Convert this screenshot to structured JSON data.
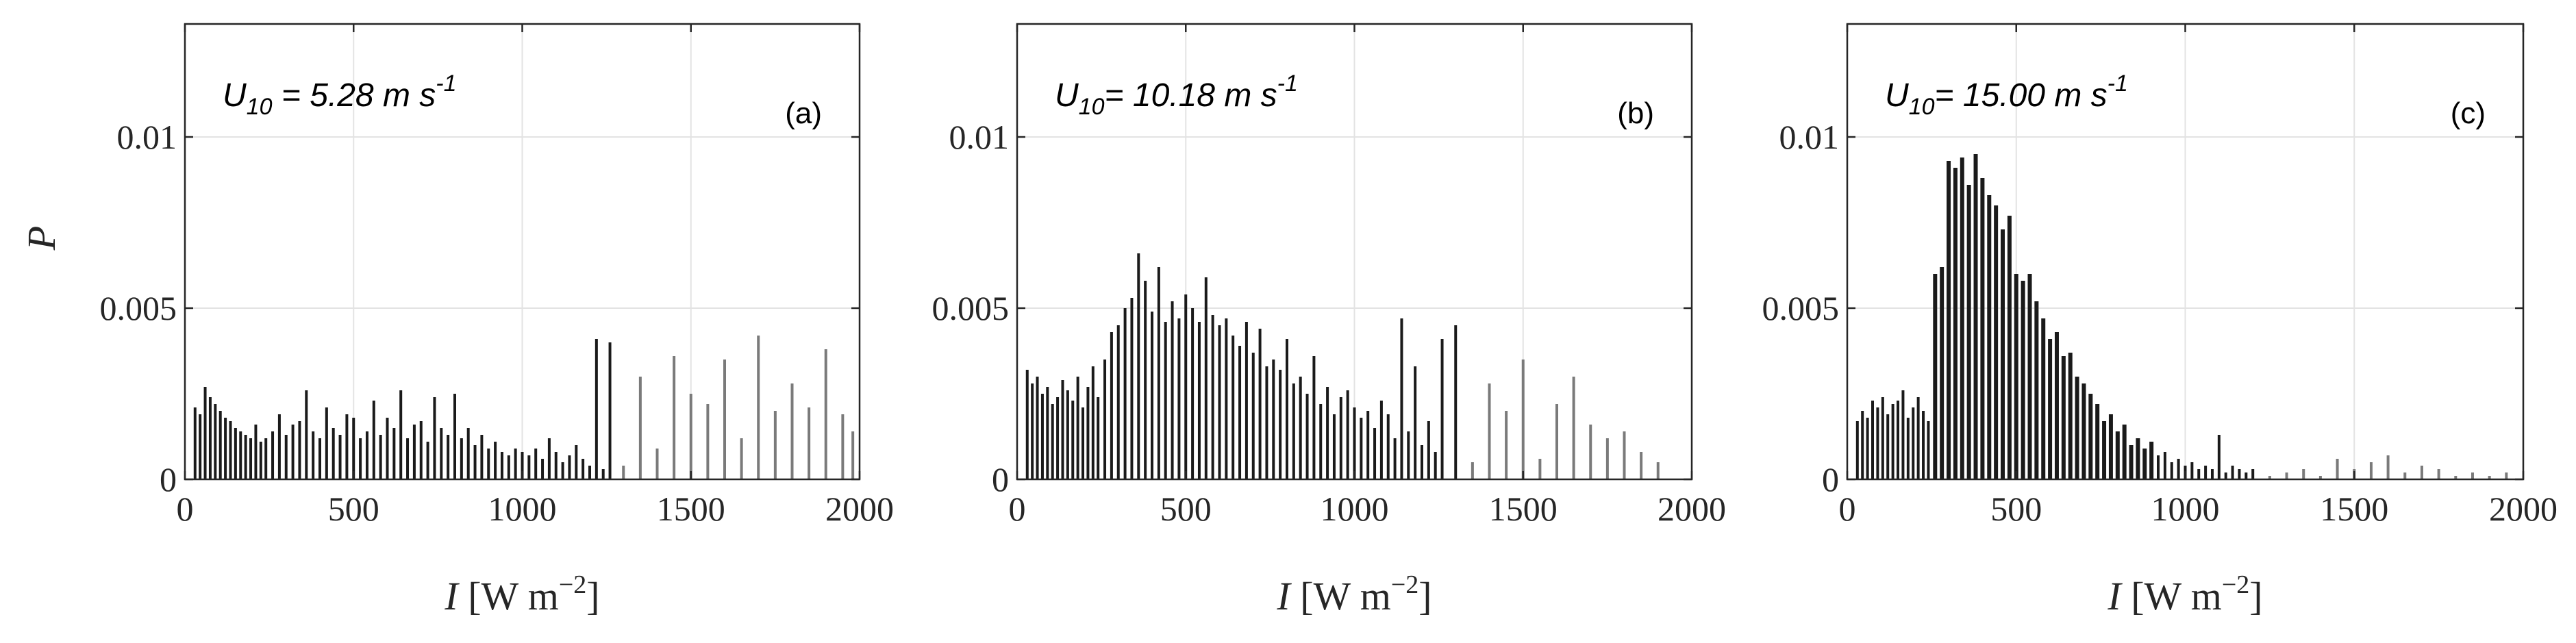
{
  "chart_data": [
    {
      "type": "bar",
      "panel_tag": "(a)",
      "annotation": {
        "base": "U",
        "sub": "10",
        "text": " = 5.28 m s",
        "sup": "-1"
      },
      "ylabel": "P",
      "xlabel": {
        "var": "I",
        "units": " [W m",
        "sup": "−2",
        "close": "]"
      },
      "xlim": [
        0,
        2000
      ],
      "ylim": [
        0,
        0.0133
      ],
      "xticks": [
        0,
        500,
        1000,
        1500,
        2000
      ],
      "xtick_labels": [
        "0",
        "500",
        "1000",
        "1500",
        "2000"
      ],
      "yticks": [
        0,
        0.005,
        0.01
      ],
      "ytick_labels": [
        "0",
        "0.005",
        "0.01"
      ],
      "grid": true,
      "x": [
        30,
        45,
        60,
        75,
        90,
        105,
        120,
        135,
        150,
        165,
        180,
        195,
        210,
        225,
        240,
        260,
        280,
        300,
        320,
        340,
        360,
        380,
        400,
        420,
        440,
        460,
        480,
        500,
        520,
        540,
        560,
        580,
        600,
        620,
        640,
        660,
        680,
        700,
        720,
        740,
        760,
        780,
        800,
        820,
        840,
        860,
        880,
        900,
        920,
        940,
        960,
        980,
        1000,
        1020,
        1040,
        1060,
        1080,
        1100,
        1120,
        1140,
        1160,
        1180,
        1200,
        1220,
        1240,
        1260,
        1300,
        1350,
        1400,
        1450,
        1500,
        1550,
        1600,
        1650,
        1700,
        1750,
        1800,
        1850,
        1900,
        1950,
        1980
      ],
      "values": [
        0.0021,
        0.0019,
        0.0027,
        0.0024,
        0.0022,
        0.002,
        0.0018,
        0.0017,
        0.0015,
        0.0014,
        0.0013,
        0.0012,
        0.0016,
        0.0011,
        0.0012,
        0.0014,
        0.0019,
        0.0013,
        0.0016,
        0.0017,
        0.0026,
        0.0014,
        0.0012,
        0.0021,
        0.0015,
        0.0013,
        0.0019,
        0.0018,
        0.0012,
        0.0014,
        0.0023,
        0.0013,
        0.0018,
        0.0015,
        0.0026,
        0.0012,
        0.0016,
        0.0017,
        0.0011,
        0.0024,
        0.0015,
        0.0013,
        0.0025,
        0.0012,
        0.0015,
        0.001,
        0.0013,
        0.0009,
        0.0011,
        0.0008,
        0.0007,
        0.0009,
        0.0008,
        0.0007,
        0.0009,
        0.0006,
        0.0012,
        0.0008,
        0.0005,
        0.0007,
        0.001,
        0.0006,
        0.0004,
        0.0041,
        0.0003,
        0.004,
        0.0004,
        0.003,
        0.0009,
        0.0036,
        0.0025,
        0.0022,
        0.0035,
        0.0012,
        0.0042,
        0.002,
        0.0028,
        0.0021,
        0.0038,
        0.0019,
        0.0014
      ]
    },
    {
      "type": "bar",
      "panel_tag": "(b)",
      "annotation": {
        "base": "U",
        "sub": "10",
        "text": "= 10.18 m s",
        "sup": "-1"
      },
      "xlabel": {
        "var": "I",
        "units": " [W m",
        "sup": "−2",
        "close": "]"
      },
      "xlim": [
        0,
        2000
      ],
      "ylim": [
        0,
        0.0133
      ],
      "xticks": [
        0,
        500,
        1000,
        1500,
        2000
      ],
      "xtick_labels": [
        "0",
        "500",
        "1000",
        "1500",
        "2000"
      ],
      "yticks": [
        0,
        0.005,
        0.01
      ],
      "ytick_labels": [
        "0",
        "0.005",
        "0.01"
      ],
      "grid": true,
      "x": [
        30,
        45,
        60,
        75,
        90,
        105,
        120,
        135,
        150,
        165,
        180,
        195,
        210,
        225,
        240,
        260,
        280,
        300,
        320,
        340,
        360,
        380,
        400,
        420,
        440,
        460,
        480,
        500,
        520,
        540,
        560,
        580,
        600,
        620,
        640,
        660,
        680,
        700,
        720,
        740,
        760,
        780,
        800,
        820,
        840,
        860,
        880,
        900,
        920,
        940,
        960,
        980,
        1000,
        1020,
        1040,
        1060,
        1080,
        1100,
        1120,
        1140,
        1160,
        1180,
        1200,
        1220,
        1240,
        1260,
        1300,
        1350,
        1400,
        1450,
        1500,
        1550,
        1600,
        1650,
        1700,
        1750,
        1800,
        1850,
        1900
      ],
      "values": [
        0.0032,
        0.0028,
        0.003,
        0.0025,
        0.0027,
        0.0022,
        0.0024,
        0.0029,
        0.0026,
        0.0023,
        0.003,
        0.0021,
        0.0027,
        0.0033,
        0.0024,
        0.0035,
        0.0043,
        0.0045,
        0.005,
        0.0053,
        0.0066,
        0.0058,
        0.0049,
        0.0062,
        0.0046,
        0.0052,
        0.0047,
        0.0054,
        0.005,
        0.0046,
        0.0059,
        0.0048,
        0.0045,
        0.0047,
        0.0042,
        0.0039,
        0.0046,
        0.0037,
        0.0044,
        0.0033,
        0.0035,
        0.0032,
        0.0041,
        0.0028,
        0.003,
        0.0025,
        0.0036,
        0.0022,
        0.0027,
        0.0019,
        0.0024,
        0.0026,
        0.0021,
        0.0018,
        0.002,
        0.0015,
        0.0023,
        0.0019,
        0.0012,
        0.0047,
        0.0014,
        0.0033,
        0.001,
        0.0017,
        0.0008,
        0.0041,
        0.0045,
        0.0005,
        0.0028,
        0.002,
        0.0035,
        0.0006,
        0.0022,
        0.003,
        0.0016,
        0.0012,
        0.0014,
        0.0008,
        0.0005
      ]
    },
    {
      "type": "bar",
      "panel_tag": "(c)",
      "annotation": {
        "base": "U",
        "sub": "10",
        "text": "= 15.00 m s",
        "sup": "-1"
      },
      "xlabel": {
        "var": "I",
        "units": " [W m",
        "sup": "−2",
        "close": "]"
      },
      "xlim": [
        0,
        2000
      ],
      "ylim": [
        0,
        0.0133
      ],
      "xticks": [
        0,
        500,
        1000,
        1500,
        2000
      ],
      "xtick_labels": [
        "0",
        "500",
        "1000",
        "1500",
        "2000"
      ],
      "yticks": [
        0,
        0.005,
        0.01
      ],
      "ytick_labels": [
        "0",
        "0.005",
        "0.01"
      ],
      "grid": true,
      "x": [
        30,
        45,
        60,
        75,
        90,
        105,
        120,
        135,
        150,
        165,
        180,
        195,
        210,
        225,
        240,
        260,
        280,
        300,
        320,
        340,
        360,
        380,
        400,
        420,
        440,
        460,
        480,
        500,
        520,
        540,
        560,
        580,
        600,
        620,
        640,
        660,
        680,
        700,
        720,
        740,
        760,
        780,
        800,
        820,
        840,
        860,
        880,
        900,
        920,
        940,
        960,
        980,
        1000,
        1020,
        1040,
        1060,
        1080,
        1100,
        1120,
        1140,
        1160,
        1180,
        1200,
        1250,
        1300,
        1350,
        1400,
        1450,
        1500,
        1550,
        1600,
        1650,
        1700,
        1750,
        1800,
        1850,
        1900,
        1950
      ],
      "values": [
        0.0017,
        0.002,
        0.0018,
        0.0023,
        0.0021,
        0.0024,
        0.0019,
        0.0022,
        0.0023,
        0.0026,
        0.0018,
        0.0021,
        0.0024,
        0.002,
        0.0017,
        0.006,
        0.0062,
        0.0093,
        0.0091,
        0.0094,
        0.0086,
        0.0095,
        0.0088,
        0.0083,
        0.008,
        0.0073,
        0.0077,
        0.006,
        0.0058,
        0.006,
        0.0052,
        0.0047,
        0.0041,
        0.0043,
        0.0036,
        0.0037,
        0.003,
        0.0028,
        0.0025,
        0.0022,
        0.0017,
        0.0019,
        0.0014,
        0.0016,
        0.001,
        0.0012,
        0.0009,
        0.0011,
        0.0007,
        0.0008,
        0.0005,
        0.0006,
        0.0004,
        0.0005,
        0.0003,
        0.0004,
        0.0003,
        0.0013,
        0.0002,
        0.0004,
        0.0003,
        0.0002,
        0.0003,
        0.0001,
        0.0002,
        0.0003,
        0.0001,
        0.0006,
        0.0003,
        0.0005,
        0.0007,
        0.0002,
        0.0004,
        0.0003,
        0.0001,
        0.0002,
        0.0001,
        0.0002
      ]
    }
  ]
}
